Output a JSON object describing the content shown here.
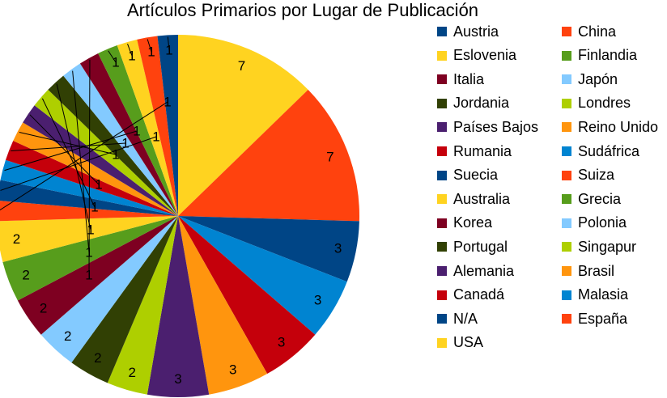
{
  "chart_data": {
    "type": "pie",
    "title": "Artículos Primarios por Lugar de Publicación",
    "legend_position": "right",
    "categories": [
      "USA",
      "España",
      "N/A",
      "Malasia",
      "Canadá",
      "Brasil",
      "Alemania",
      "Singapur",
      "Portugal",
      "Polonia",
      "Korea",
      "Grecia",
      "Australia",
      "Suiza",
      "Suecia",
      "Sudáfrica",
      "Rumania",
      "Reino Unido",
      "Países Bajos",
      "Londres",
      "Jordania",
      "Japón",
      "Italia",
      "Finlandia",
      "Eslovenia",
      "China",
      "Austria"
    ],
    "values": [
      7,
      7,
      3,
      3,
      3,
      3,
      3,
      2,
      2,
      2,
      2,
      2,
      2,
      1,
      1,
      1,
      1,
      1,
      1,
      1,
      1,
      1,
      1,
      1,
      1,
      1,
      1
    ],
    "colors": [
      "#ffd320",
      "#ff420e",
      "#004586",
      "#0084d1",
      "#c5000b",
      "#ff950e",
      "#4b1f6f",
      "#aecf00",
      "#314004",
      "#83caff",
      "#7e0021",
      "#579d1c",
      "#ffd320",
      "#ff420e",
      "#004586",
      "#0084d1",
      "#c5000b",
      "#ff950e",
      "#4b1f6f",
      "#aecf00",
      "#314004",
      "#83caff",
      "#7e0021",
      "#579d1c",
      "#ffd320",
      "#ff420e",
      "#004586"
    ],
    "legend": [
      {
        "label": "Austria",
        "color": "#004586"
      },
      {
        "label": "China",
        "color": "#ff420e"
      },
      {
        "label": "Eslovenia",
        "color": "#ffd320"
      },
      {
        "label": "Finlandia",
        "color": "#579d1c"
      },
      {
        "label": "Italia",
        "color": "#7e0021"
      },
      {
        "label": "Japón",
        "color": "#83caff"
      },
      {
        "label": "Jordania",
        "color": "#314004"
      },
      {
        "label": "Londres",
        "color": "#aecf00"
      },
      {
        "label": "Países Bajos",
        "color": "#4b1f6f"
      },
      {
        "label": "Reino Unido",
        "color": "#ff950e"
      },
      {
        "label": "Rumania",
        "color": "#c5000b"
      },
      {
        "label": "Sudáfrica",
        "color": "#0084d1"
      },
      {
        "label": "Suecia",
        "color": "#004586"
      },
      {
        "label": "Suiza",
        "color": "#ff420e"
      },
      {
        "label": "Australia",
        "color": "#ffd320"
      },
      {
        "label": "Grecia",
        "color": "#579d1c"
      },
      {
        "label": "Korea",
        "color": "#7e0021"
      },
      {
        "label": "Polonia",
        "color": "#83caff"
      },
      {
        "label": "Portugal",
        "color": "#314004"
      },
      {
        "label": "Singapur",
        "color": "#aecf00"
      },
      {
        "label": "Alemania",
        "color": "#4b1f6f"
      },
      {
        "label": "Brasil",
        "color": "#ff950e"
      },
      {
        "label": "Canadá",
        "color": "#c5000b"
      },
      {
        "label": "Malasia",
        "color": "#0084d1"
      },
      {
        "label": "N/A",
        "color": "#004586"
      },
      {
        "label": "España",
        "color": "#ff420e"
      },
      {
        "label": "USA",
        "color": "#ffd320"
      }
    ]
  }
}
